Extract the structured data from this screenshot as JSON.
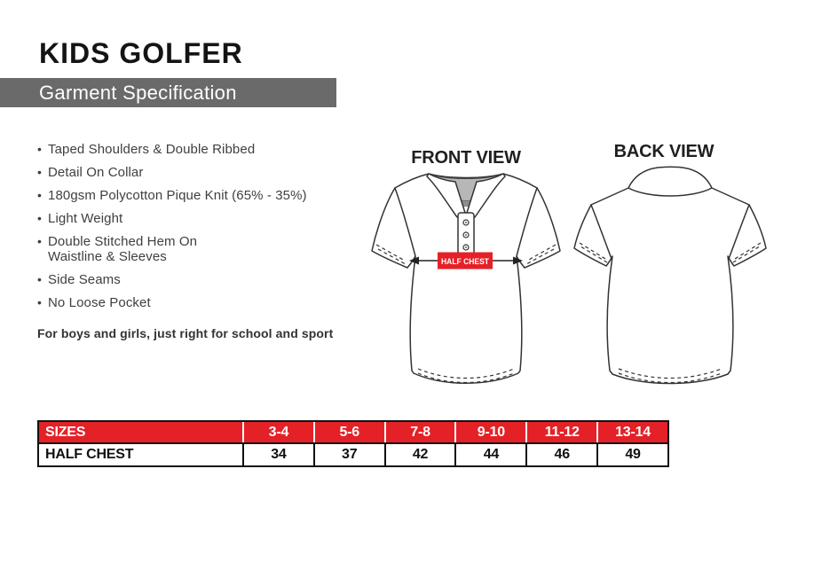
{
  "page": {
    "title": "KIDS GOLFER",
    "subtitle": "Garment Specification"
  },
  "features": {
    "items": [
      "Taped Shoulders & Double Ribbed",
      "Detail On Collar",
      "180gsm Polycotton Pique Knit (65% - 35%)",
      "Light Weight",
      "Double Stitched Hem On\nWaistline & Sleeves",
      "Side Seams",
      "No Loose Pocket"
    ],
    "note": "For boys and girls, just right for school and sport"
  },
  "diagram": {
    "front_label": "FRONT VIEW",
    "back_label": "BACK VIEW",
    "measurement_label": "HALF CHEST"
  },
  "size_table": {
    "header": [
      "SIZES",
      "3-4",
      "5-6",
      "7-8",
      "9-10",
      "11-12",
      "13-14"
    ],
    "rows": [
      {
        "label": "HALF CHEST",
        "values": [
          "34",
          "37",
          "42",
          "44",
          "46",
          "49"
        ]
      }
    ]
  },
  "colors": {
    "accent_red": "#e42127",
    "banner_gray": "#6a6a6a",
    "outline": "#333333",
    "collar_inner_gray": "#b7b7b7",
    "collar_shadow_gray": "#8e8e8e"
  }
}
